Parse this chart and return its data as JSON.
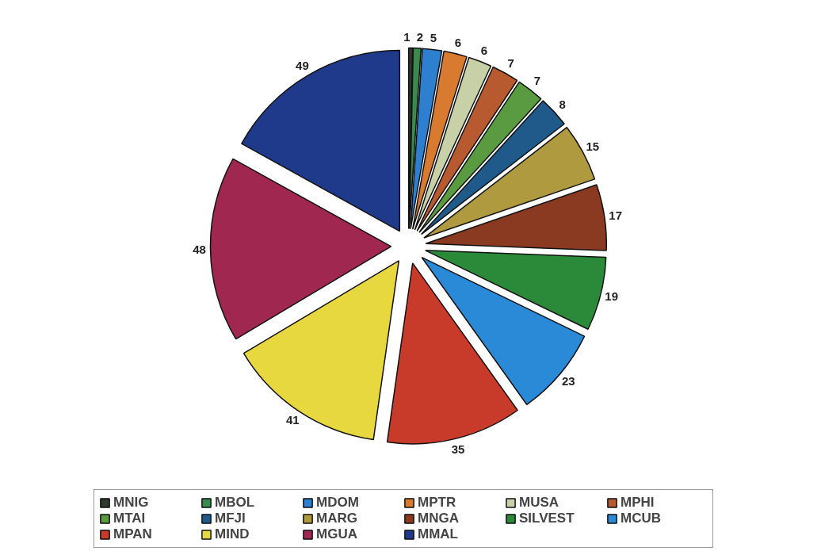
{
  "chart_data": {
    "type": "pie",
    "categories": [
      "MNIG",
      "MBOL",
      "MDOM",
      "MPTR",
      "MUSA",
      "MPHI",
      "MTAI",
      "MFJI",
      "MARG",
      "MNGA",
      "SILVEST",
      "MCUB",
      "MPAN",
      "MIND",
      "MGUA",
      "MMAL"
    ],
    "values": [
      1,
      2,
      5,
      6,
      6,
      7,
      7,
      8,
      15,
      17,
      19,
      23,
      35,
      41,
      48,
      49
    ],
    "colors": [
      "#2e3a2e",
      "#3a8a50",
      "#2f7fd0",
      "#d87a30",
      "#c8d0a8",
      "#b85a30",
      "#5a9a40",
      "#1f5a8a",
      "#b09a40",
      "#8a3a20",
      "#2a8a3a",
      "#2a8ad8",
      "#c83a2a",
      "#e8d840",
      "#a02850",
      "#1f3a8a"
    ],
    "data_labels": true,
    "legend": "bottom"
  }
}
